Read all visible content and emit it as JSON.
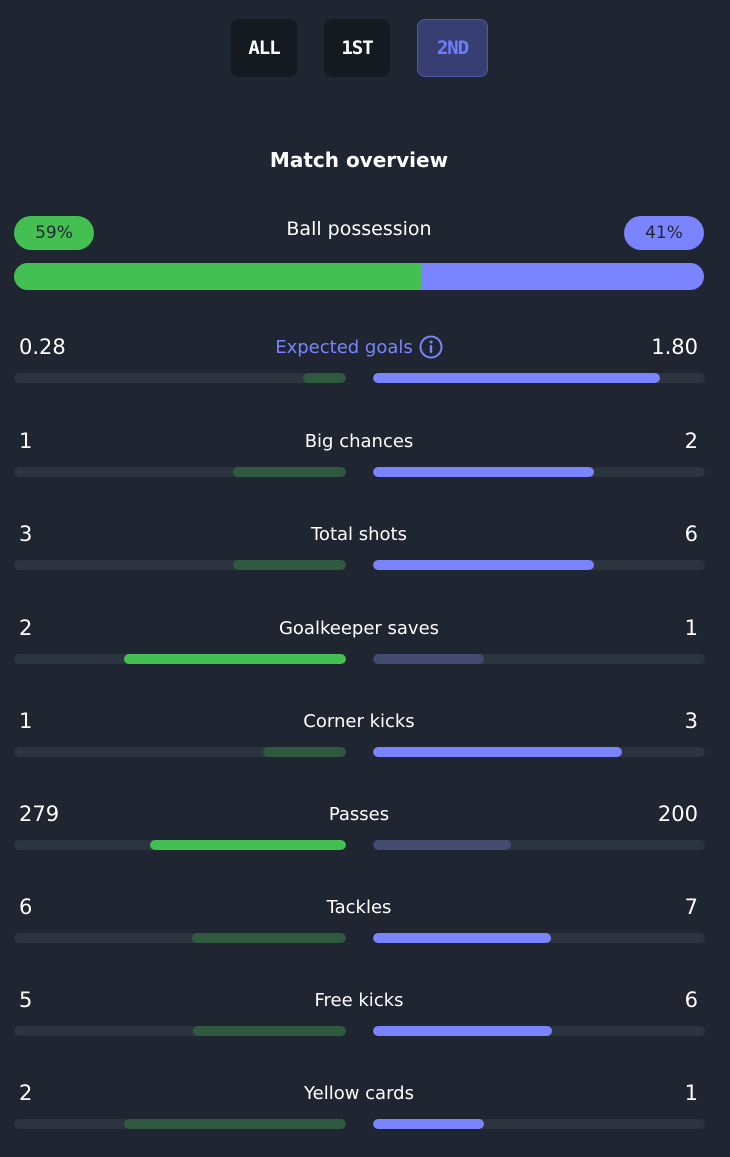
{
  "tabs": [
    {
      "label": "ALL",
      "active": false
    },
    {
      "label": "1ST",
      "active": false
    },
    {
      "label": "2ND",
      "active": true
    }
  ],
  "section_title": "Match overview",
  "possession": {
    "label": "Ball possession",
    "home": "59%",
    "away": "41%",
    "home_fraction": 0.59
  },
  "stats": [
    {
      "label": "Expected goals",
      "home": "0.28",
      "away": "1.80",
      "home_ratio": 0.13,
      "away_ratio": 0.865,
      "winner": "away",
      "info": true
    },
    {
      "label": "Big chances",
      "home": "1",
      "away": "2",
      "home_ratio": 0.34,
      "away_ratio": 0.665,
      "winner": "away"
    },
    {
      "label": "Total shots",
      "home": "3",
      "away": "6",
      "home_ratio": 0.34,
      "away_ratio": 0.665,
      "winner": "away"
    },
    {
      "label": "Goalkeeper saves",
      "home": "2",
      "away": "1",
      "home_ratio": 0.67,
      "away_ratio": 0.335,
      "winner": "home"
    },
    {
      "label": "Corner kicks",
      "home": "1",
      "away": "3",
      "home_ratio": 0.25,
      "away_ratio": 0.75,
      "winner": "away"
    },
    {
      "label": "Passes",
      "home": "279",
      "away": "200",
      "home_ratio": 0.59,
      "away_ratio": 0.415,
      "winner": "home"
    },
    {
      "label": "Tackles",
      "home": "6",
      "away": "7",
      "home_ratio": 0.465,
      "away_ratio": 0.535,
      "winner": "away"
    },
    {
      "label": "Free kicks",
      "home": "5",
      "away": "6",
      "home_ratio": 0.46,
      "away_ratio": 0.54,
      "winner": "away"
    },
    {
      "label": "Yellow cards",
      "home": "2",
      "away": "1",
      "home_ratio": 0.67,
      "away_ratio": 0.335,
      "winner": "away"
    }
  ],
  "icons": {
    "info": "info-circle-icon"
  },
  "colors": {
    "background": "#1f2631",
    "home": "#44c052",
    "home_muted": "#2f5a3f",
    "away": "#7a84ff",
    "away_muted": "#434b71",
    "track": "#2c3440"
  }
}
